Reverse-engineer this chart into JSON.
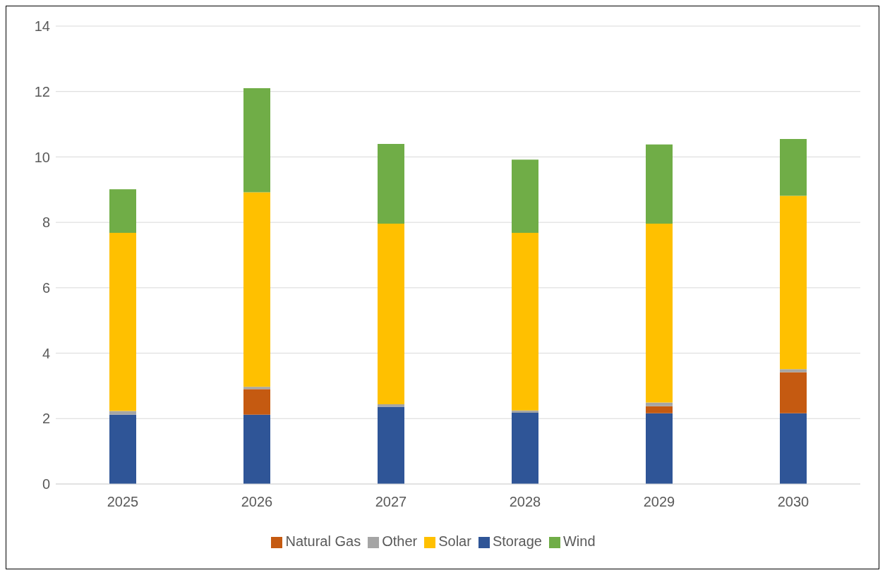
{
  "chart_data": {
    "type": "bar",
    "stacked": true,
    "categories": [
      "2025",
      "2026",
      "2027",
      "2028",
      "2029",
      "2030"
    ],
    "series": [
      {
        "name": "Storage",
        "color": "#2f5597",
        "values": [
          2.12,
          2.12,
          2.36,
          2.18,
          2.16,
          2.16
        ]
      },
      {
        "name": "Natural Gas",
        "color": "#c55a11",
        "values": [
          0,
          0.78,
          0,
          0,
          0.22,
          1.26
        ]
      },
      {
        "name": "Other",
        "color": "#a5a5a5",
        "values": [
          0.11,
          0.07,
          0.08,
          0.07,
          0.11,
          0.09
        ]
      },
      {
        "name": "Solar",
        "color": "#ffc000",
        "values": [
          5.45,
          5.95,
          5.52,
          5.43,
          5.47,
          5.3
        ]
      },
      {
        "name": "Wind",
        "color": "#70ad47",
        "values": [
          1.33,
          3.18,
          2.44,
          2.24,
          2.42,
          1.74
        ]
      }
    ],
    "ylim": [
      0,
      14
    ],
    "yticks": [
      0,
      2,
      4,
      6,
      8,
      10,
      12,
      14
    ],
    "grid": "y",
    "legend": "bottom"
  }
}
